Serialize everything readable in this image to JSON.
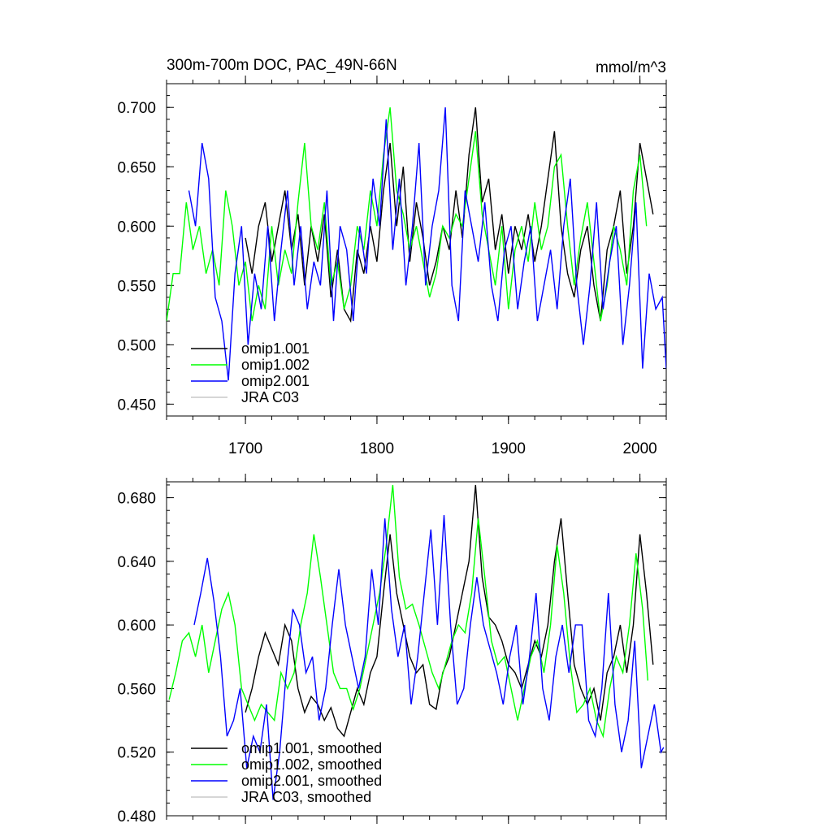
{
  "chart_data": [
    {
      "type": "line",
      "title": "300m-700m DOC, PAC_49N-66N",
      "units": "mmol/m^3",
      "xlim": [
        1640,
        2020
      ],
      "ylim": [
        0.44,
        0.72
      ],
      "yticks": [
        0.45,
        0.5,
        0.55,
        0.6,
        0.65,
        0.7
      ],
      "ytick_labels": [
        "0.450",
        "0.500",
        "0.550",
        "0.600",
        "0.650",
        "0.700"
      ],
      "xticks": [
        1700,
        1800,
        1900,
        2000
      ],
      "xtick_labels": [
        "1700",
        "1800",
        "1900",
        "2000"
      ],
      "legend_position": "bottom-left",
      "series": [
        {
          "name": "omip1.001",
          "color": "#000000",
          "x": [
            1700,
            1705,
            1710,
            1715,
            1720,
            1725,
            1730,
            1735,
            1740,
            1745,
            1750,
            1755,
            1760,
            1765,
            1770,
            1775,
            1780,
            1785,
            1790,
            1795,
            1800,
            1805,
            1810,
            1815,
            1820,
            1825,
            1830,
            1835,
            1840,
            1845,
            1850,
            1855,
            1860,
            1865,
            1870,
            1875,
            1880,
            1885,
            1890,
            1895,
            1900,
            1905,
            1910,
            1915,
            1920,
            1925,
            1930,
            1935,
            1940,
            1945,
            1950,
            1955,
            1960,
            1965,
            1970,
            1975,
            1980,
            1985,
            1990,
            1995,
            2000,
            2005,
            2010
          ],
          "y": [
            0.59,
            0.56,
            0.6,
            0.62,
            0.57,
            0.6,
            0.63,
            0.58,
            0.61,
            0.55,
            0.6,
            0.57,
            0.61,
            0.54,
            0.58,
            0.53,
            0.52,
            0.58,
            0.56,
            0.6,
            0.57,
            0.63,
            0.67,
            0.6,
            0.65,
            0.57,
            0.62,
            0.59,
            0.55,
            0.57,
            0.6,
            0.58,
            0.63,
            0.59,
            0.66,
            0.7,
            0.62,
            0.64,
            0.58,
            0.61,
            0.56,
            0.6,
            0.58,
            0.61,
            0.57,
            0.6,
            0.64,
            0.68,
            0.6,
            0.56,
            0.54,
            0.58,
            0.6,
            0.55,
            0.52,
            0.58,
            0.6,
            0.63,
            0.56,
            0.6,
            0.67,
            0.64,
            0.61
          ]
        },
        {
          "name": "omip1.002",
          "color": "#00ff00",
          "x": [
            1640,
            1645,
            1650,
            1655,
            1660,
            1665,
            1670,
            1675,
            1680,
            1685,
            1690,
            1695,
            1700,
            1705,
            1710,
            1715,
            1720,
            1725,
            1730,
            1735,
            1740,
            1745,
            1750,
            1755,
            1760,
            1765,
            1770,
            1775,
            1780,
            1785,
            1790,
            1795,
            1800,
            1805,
            1810,
            1815,
            1820,
            1825,
            1830,
            1835,
            1840,
            1845,
            1850,
            1855,
            1860,
            1865,
            1870,
            1875,
            1880,
            1885,
            1890,
            1895,
            1900,
            1905,
            1910,
            1915,
            1920,
            1925,
            1930,
            1935,
            1940,
            1945,
            1950,
            1955,
            1960,
            1965,
            1970,
            1975,
            1980,
            1985,
            1990,
            1995,
            2000,
            2005
          ],
          "y": [
            0.52,
            0.56,
            0.56,
            0.62,
            0.58,
            0.6,
            0.56,
            0.58,
            0.55,
            0.63,
            0.6,
            0.55,
            0.57,
            0.52,
            0.55,
            0.53,
            0.6,
            0.55,
            0.58,
            0.56,
            0.62,
            0.67,
            0.6,
            0.58,
            0.62,
            0.55,
            0.57,
            0.53,
            0.55,
            0.6,
            0.58,
            0.63,
            0.6,
            0.66,
            0.7,
            0.63,
            0.61,
            0.58,
            0.6,
            0.57,
            0.54,
            0.56,
            0.6,
            0.59,
            0.61,
            0.6,
            0.64,
            0.68,
            0.61,
            0.58,
            0.55,
            0.6,
            0.53,
            0.58,
            0.6,
            0.57,
            0.62,
            0.58,
            0.6,
            0.65,
            0.66,
            0.6,
            0.55,
            0.59,
            0.62,
            0.57,
            0.52,
            0.55,
            0.6,
            0.58,
            0.55,
            0.63,
            0.66,
            0.6
          ]
        },
        {
          "name": "omip2.001",
          "color": "#0000ff",
          "x": [
            1657,
            1662,
            1667,
            1672,
            1677,
            1682,
            1687,
            1692,
            1697,
            1702,
            1707,
            1712,
            1717,
            1722,
            1727,
            1732,
            1737,
            1742,
            1747,
            1752,
            1757,
            1762,
            1767,
            1772,
            1777,
            1782,
            1787,
            1792,
            1797,
            1802,
            1807,
            1812,
            1817,
            1822,
            1827,
            1832,
            1837,
            1842,
            1847,
            1852,
            1857,
            1862,
            1867,
            1872,
            1877,
            1882,
            1887,
            1892,
            1897,
            1902,
            1907,
            1912,
            1917,
            1922,
            1927,
            1932,
            1937,
            1942,
            1947,
            1952,
            1957,
            1962,
            1967,
            1972,
            1977,
            1982,
            1987,
            1992,
            1997,
            2002,
            2007,
            2012,
            2017,
            2020
          ],
          "y": [
            0.63,
            0.6,
            0.67,
            0.64,
            0.54,
            0.52,
            0.47,
            0.56,
            0.6,
            0.5,
            0.56,
            0.53,
            0.6,
            0.52,
            0.58,
            0.63,
            0.55,
            0.6,
            0.53,
            0.57,
            0.55,
            0.63,
            0.52,
            0.6,
            0.58,
            0.52,
            0.6,
            0.56,
            0.64,
            0.6,
            0.69,
            0.58,
            0.64,
            0.55,
            0.6,
            0.67,
            0.55,
            0.6,
            0.63,
            0.7,
            0.55,
            0.52,
            0.63,
            0.6,
            0.57,
            0.62,
            0.55,
            0.52,
            0.58,
            0.6,
            0.53,
            0.57,
            0.6,
            0.52,
            0.55,
            0.58,
            0.53,
            0.6,
            0.64,
            0.55,
            0.5,
            0.55,
            0.62,
            0.53,
            0.57,
            0.6,
            0.5,
            0.55,
            0.62,
            0.48,
            0.56,
            0.53,
            0.54,
            0.48
          ]
        },
        {
          "name": "JRA C03",
          "color": "#c8c8c8",
          "x": [],
          "y": []
        }
      ]
    },
    {
      "type": "line",
      "xlim": [
        1640,
        2020
      ],
      "ylim": [
        0.48,
        0.69
      ],
      "yticks": [
        0.48,
        0.52,
        0.56,
        0.6,
        0.64,
        0.68
      ],
      "ytick_labels": [
        "0.480",
        "0.520",
        "0.560",
        "0.600",
        "0.640",
        "0.680"
      ],
      "xticks": [
        1700,
        1800,
        1900,
        2000
      ],
      "legend_position": "bottom-left",
      "series": [
        {
          "name": "omip1.001, smoothed",
          "color": "#000000",
          "x": [
            1700,
            1705,
            1710,
            1715,
            1720,
            1725,
            1730,
            1735,
            1740,
            1745,
            1750,
            1755,
            1760,
            1765,
            1770,
            1775,
            1780,
            1785,
            1790,
            1795,
            1800,
            1805,
            1810,
            1815,
            1820,
            1825,
            1830,
            1835,
            1840,
            1845,
            1850,
            1855,
            1860,
            1865,
            1870,
            1875,
            1880,
            1885,
            1890,
            1895,
            1900,
            1905,
            1910,
            1915,
            1920,
            1925,
            1930,
            1935,
            1940,
            1945,
            1950,
            1955,
            1960,
            1965,
            1970,
            1975,
            1980,
            1985,
            1990,
            1995,
            2000,
            2005,
            2010
          ],
          "y": [
            0.545,
            0.56,
            0.58,
            0.595,
            0.585,
            0.575,
            0.6,
            0.59,
            0.56,
            0.545,
            0.555,
            0.55,
            0.54,
            0.548,
            0.535,
            0.53,
            0.545,
            0.56,
            0.55,
            0.57,
            0.58,
            0.62,
            0.657,
            0.62,
            0.6,
            0.58,
            0.57,
            0.575,
            0.55,
            0.547,
            0.57,
            0.58,
            0.6,
            0.62,
            0.64,
            0.688,
            0.63,
            0.605,
            0.6,
            0.59,
            0.575,
            0.57,
            0.56,
            0.575,
            0.59,
            0.58,
            0.6,
            0.64,
            0.667,
            0.62,
            0.575,
            0.56,
            0.55,
            0.56,
            0.54,
            0.57,
            0.58,
            0.6,
            0.57,
            0.6,
            0.657,
            0.62,
            0.575
          ]
        },
        {
          "name": "omip1.002, smoothed",
          "color": "#00ff00",
          "x": [
            1642,
            1647,
            1652,
            1657,
            1662,
            1667,
            1672,
            1677,
            1682,
            1687,
            1692,
            1697,
            1702,
            1707,
            1712,
            1717,
            1722,
            1727,
            1732,
            1737,
            1742,
            1747,
            1752,
            1757,
            1762,
            1767,
            1772,
            1777,
            1782,
            1787,
            1792,
            1797,
            1802,
            1807,
            1812,
            1817,
            1822,
            1827,
            1832,
            1837,
            1842,
            1847,
            1852,
            1857,
            1862,
            1867,
            1872,
            1877,
            1882,
            1887,
            1892,
            1897,
            1902,
            1907,
            1912,
            1917,
            1922,
            1927,
            1932,
            1937,
            1942,
            1947,
            1952,
            1957,
            1962,
            1967,
            1972,
            1977,
            1982,
            1987,
            1992,
            1997,
            2002,
            2006
          ],
          "y": [
            0.553,
            0.57,
            0.59,
            0.595,
            0.58,
            0.6,
            0.57,
            0.59,
            0.61,
            0.62,
            0.6,
            0.56,
            0.55,
            0.54,
            0.55,
            0.545,
            0.54,
            0.57,
            0.56,
            0.57,
            0.6,
            0.62,
            0.657,
            0.63,
            0.6,
            0.57,
            0.56,
            0.56,
            0.547,
            0.56,
            0.58,
            0.6,
            0.62,
            0.65,
            0.688,
            0.63,
            0.61,
            0.613,
            0.6,
            0.585,
            0.57,
            0.56,
            0.575,
            0.59,
            0.6,
            0.595,
            0.62,
            0.667,
            0.63,
            0.59,
            0.575,
            0.58,
            0.56,
            0.54,
            0.56,
            0.58,
            0.59,
            0.57,
            0.6,
            0.65,
            0.62,
            0.575,
            0.545,
            0.55,
            0.56,
            0.54,
            0.53,
            0.56,
            0.58,
            0.57,
            0.6,
            0.645,
            0.61,
            0.565
          ]
        },
        {
          "name": "omip2.001, smoothed",
          "color": "#0000ff",
          "x": [
            1661,
            1666,
            1671,
            1676,
            1681,
            1686,
            1691,
            1696,
            1701,
            1706,
            1711,
            1716,
            1721,
            1726,
            1731,
            1736,
            1741,
            1746,
            1751,
            1756,
            1761,
            1766,
            1771,
            1776,
            1781,
            1786,
            1791,
            1796,
            1801,
            1806,
            1811,
            1816,
            1821,
            1826,
            1831,
            1836,
            1841,
            1846,
            1851,
            1856,
            1861,
            1866,
            1871,
            1876,
            1881,
            1886,
            1891,
            1896,
            1901,
            1906,
            1911,
            1916,
            1921,
            1926,
            1931,
            1936,
            1941,
            1946,
            1951,
            1956,
            1961,
            1966,
            1971,
            1976,
            1981,
            1986,
            1991,
            1996,
            2001,
            2006,
            2011,
            2016,
            2018
          ],
          "y": [
            0.6,
            0.62,
            0.642,
            0.615,
            0.58,
            0.53,
            0.54,
            0.56,
            0.51,
            0.53,
            0.52,
            0.55,
            0.49,
            0.52,
            0.57,
            0.61,
            0.6,
            0.57,
            0.58,
            0.54,
            0.56,
            0.6,
            0.635,
            0.6,
            0.58,
            0.56,
            0.58,
            0.635,
            0.6,
            0.667,
            0.61,
            0.58,
            0.6,
            0.55,
            0.58,
            0.62,
            0.66,
            0.6,
            0.669,
            0.6,
            0.55,
            0.56,
            0.6,
            0.63,
            0.6,
            0.585,
            0.57,
            0.55,
            0.58,
            0.6,
            0.55,
            0.58,
            0.62,
            0.56,
            0.54,
            0.58,
            0.6,
            0.57,
            0.6,
            0.6,
            0.54,
            0.53,
            0.56,
            0.62,
            0.55,
            0.52,
            0.54,
            0.59,
            0.51,
            0.53,
            0.55,
            0.52,
            0.523
          ]
        },
        {
          "name": "JRA C03, smoothed",
          "color": "#c8c8c8",
          "x": [],
          "y": []
        }
      ]
    }
  ]
}
